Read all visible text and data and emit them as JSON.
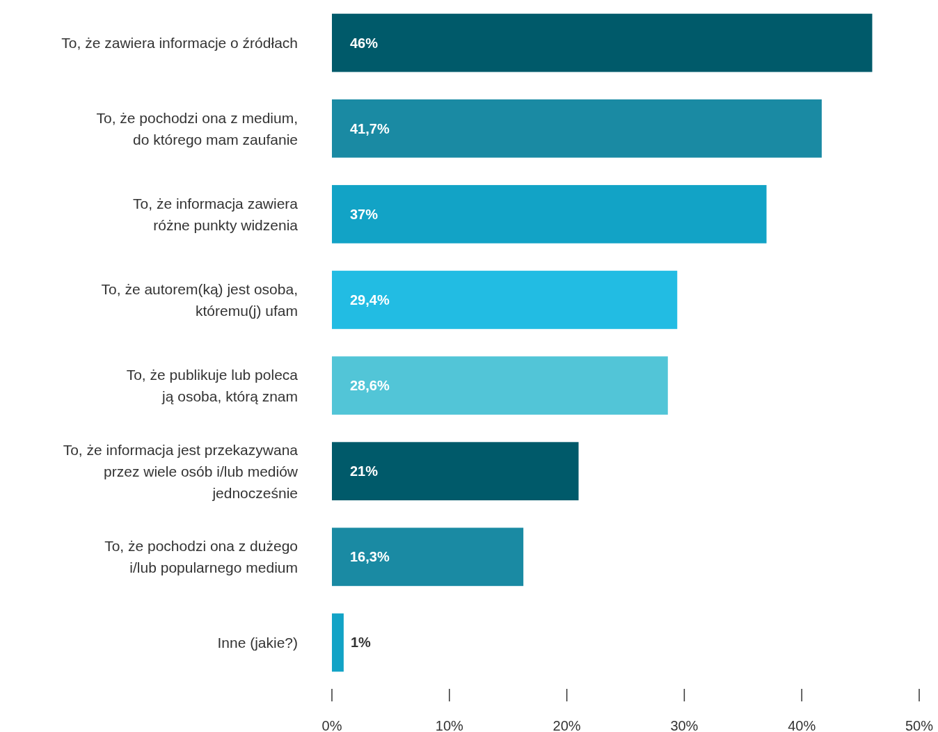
{
  "chart_data": {
    "type": "bar",
    "orientation": "horizontal",
    "categories": [
      "To, że zawiera informacje o źródłach",
      "To, że pochodzi ona z medium,\ndo którego mam zaufanie",
      "To, że informacja zawiera\nróżne punkty widzenia",
      "To, że autorem(ką) jest osoba,\nktóremu(j) ufam",
      "To, że publikuje lub poleca\nją osoba, którą znam",
      "To, że informacja jest przekazywana\nprzez wiele osób i/lub mediów\njednocześnie",
      "To, że pochodzi ona z dużego\ni/lub popularnego medium",
      "Inne (jakie?)"
    ],
    "values": [
      46,
      41.7,
      37,
      29.4,
      28.6,
      21,
      16.3,
      1
    ],
    "value_labels": [
      "46%",
      "41,7%",
      "37%",
      "29,4%",
      "28,6%",
      "21%",
      "16,3%",
      "1%"
    ],
    "colors": [
      "#005a6a",
      "#1a8aa3",
      "#12a3c6",
      "#22bce3",
      "#52c5d7",
      "#005a6a",
      "#1a8aa3",
      "#12a3c6"
    ],
    "xlim": [
      0,
      50
    ],
    "xticks": [
      {
        "value": 0,
        "label": "0%"
      },
      {
        "value": 10,
        "label": "10%"
      },
      {
        "value": 20,
        "label": "20%"
      },
      {
        "value": 30,
        "label": "30%"
      },
      {
        "value": 40,
        "label": "40%"
      },
      {
        "value": 50,
        "label": "50%"
      }
    ],
    "grid": false
  }
}
